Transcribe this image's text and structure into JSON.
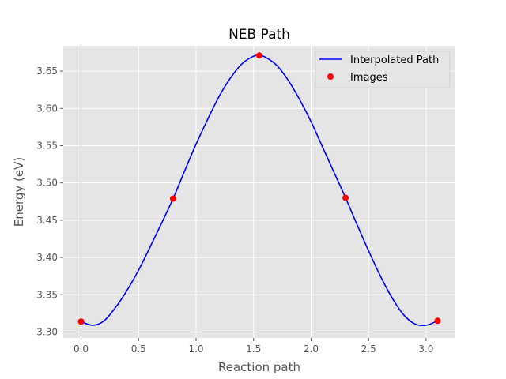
{
  "chart_data": {
    "type": "line",
    "title": "NEB Path",
    "xlabel": "Reaction path",
    "ylabel": "Energy (eV)",
    "xlim": [
      -0.155,
      3.255
    ],
    "ylim": [
      3.292,
      3.684
    ],
    "x_ticks": [
      0.0,
      0.5,
      1.0,
      1.5,
      2.0,
      2.5,
      3.0
    ],
    "x_tick_labels": [
      "0.0",
      "0.5",
      "1.0",
      "1.5",
      "2.0",
      "2.5",
      "3.0"
    ],
    "y_ticks": [
      3.3,
      3.35,
      3.4,
      3.45,
      3.5,
      3.55,
      3.6,
      3.65
    ],
    "y_tick_labels": [
      "3.30",
      "3.35",
      "3.40",
      "3.45",
      "3.50",
      "3.55",
      "3.60",
      "3.65"
    ],
    "grid": true,
    "legend_position": "top-right",
    "series": [
      {
        "name": "Interpolated Path",
        "kind": "line",
        "color": "#0000ff",
        "x": [
          0.0,
          0.1,
          0.2,
          0.3,
          0.4,
          0.5,
          0.6,
          0.7,
          0.8,
          0.9,
          1.0,
          1.1,
          1.2,
          1.3,
          1.4,
          1.5,
          1.55,
          1.6,
          1.7,
          1.8,
          1.9,
          2.0,
          2.1,
          2.2,
          2.3,
          2.4,
          2.5,
          2.6,
          2.7,
          2.8,
          2.9,
          3.0,
          3.1
        ],
        "y": [
          3.314,
          3.309,
          3.315,
          3.333,
          3.356,
          3.383,
          3.414,
          3.446,
          3.479,
          3.516,
          3.552,
          3.585,
          3.616,
          3.641,
          3.66,
          3.67,
          3.671,
          3.669,
          3.658,
          3.638,
          3.612,
          3.582,
          3.548,
          3.514,
          3.48,
          3.444,
          3.409,
          3.376,
          3.347,
          3.324,
          3.311,
          3.309,
          3.315
        ]
      },
      {
        "name": "Images",
        "kind": "markers",
        "color": "#ff0000",
        "x": [
          0.0,
          0.8,
          1.55,
          2.3,
          3.1
        ],
        "y": [
          3.314,
          3.479,
          3.671,
          3.48,
          3.315
        ]
      }
    ]
  }
}
